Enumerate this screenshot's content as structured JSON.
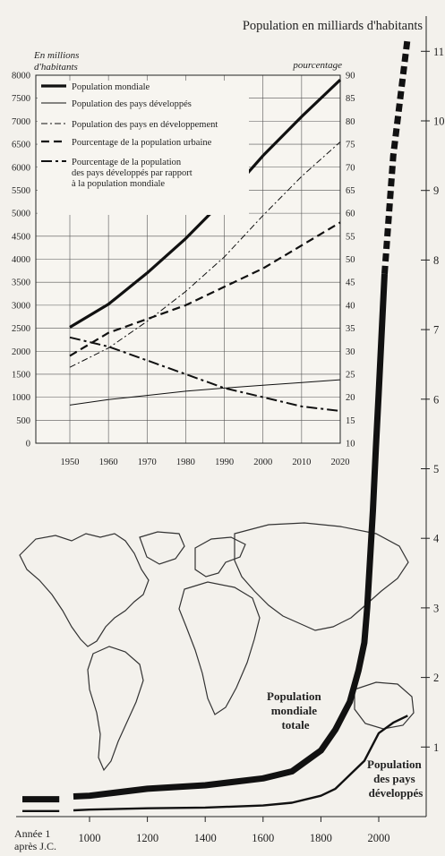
{
  "chart_data": [
    {
      "type": "line",
      "title": "Population en milliards d'habitants",
      "x": [
        1,
        1000,
        1200,
        1400,
        1600,
        1800,
        1900,
        1950,
        2000,
        2020,
        2100
      ],
      "xlim": [
        1,
        2100
      ],
      "xticks": [
        1000,
        1200,
        1400,
        1600,
        1800,
        2000
      ],
      "xtick_labels": [
        "1000",
        "1200",
        "1400",
        "1600",
        "1800",
        "2000"
      ],
      "x_start_label": [
        "Année 1",
        "après J.C."
      ],
      "ylim": [
        0,
        11.5
      ],
      "yticks": [
        1,
        2,
        3,
        4,
        5,
        6,
        7,
        8,
        9,
        10,
        11
      ],
      "yticks_side": "right",
      "series": [
        {
          "name": "Population mondiale totale",
          "label_lines": [
            "Population",
            "mondiale",
            "totale"
          ],
          "points": [
            [
              1,
              0.25
            ],
            [
              1000,
              0.3
            ],
            [
              1200,
              0.4
            ],
            [
              1400,
              0.45
            ],
            [
              1600,
              0.55
            ],
            [
              1700,
              0.65
            ],
            [
              1800,
              0.95
            ],
            [
              1850,
              1.25
            ],
            [
              1900,
              1.65
            ],
            [
              1930,
              2.1
            ],
            [
              1950,
              2.5
            ],
            [
              1960,
              3.0
            ],
            [
              1970,
              3.7
            ],
            [
              1980,
              4.4
            ],
            [
              1990,
              5.3
            ],
            [
              2000,
              6.1
            ],
            [
              2020,
              7.8
            ],
            [
              2050,
              9.5
            ],
            [
              2100,
              11.2
            ]
          ]
        },
        {
          "name": "Population des pays développés",
          "label_lines": [
            "Population",
            "des pays",
            "développés"
          ],
          "points": [
            [
              1,
              0.08
            ],
            [
              1000,
              0.1
            ],
            [
              1200,
              0.12
            ],
            [
              1400,
              0.13
            ],
            [
              1600,
              0.16
            ],
            [
              1700,
              0.2
            ],
            [
              1800,
              0.3
            ],
            [
              1850,
              0.4
            ],
            [
              1900,
              0.6
            ],
            [
              1950,
              0.8
            ],
            [
              2000,
              1.2
            ],
            [
              2050,
              1.35
            ],
            [
              2100,
              1.45
            ]
          ]
        }
      ]
    },
    {
      "type": "line",
      "x": [
        1950,
        1960,
        1970,
        1980,
        1990,
        2000,
        2010,
        2020
      ],
      "xticks": [
        1950,
        1960,
        1970,
        1980,
        1990,
        2000,
        2010,
        2020
      ],
      "xlim": [
        1945,
        2020
      ],
      "ylabel_left": [
        "En millions",
        "d'habitants"
      ],
      "ylim_left": [
        0,
        8000
      ],
      "yticks_left": [
        0,
        500,
        1000,
        1500,
        2000,
        2500,
        3000,
        3500,
        4000,
        4500,
        5000,
        5500,
        6000,
        6500,
        7000,
        7500,
        8000
      ],
      "ylabel_right": "pourcentage",
      "ylim_right": [
        10,
        90
      ],
      "yticks_right": [
        10,
        15,
        20,
        25,
        30,
        35,
        40,
        45,
        50,
        55,
        60,
        65,
        70,
        75,
        80,
        85,
        90
      ],
      "grid": true,
      "legend_position": "top-left",
      "series": [
        {
          "name": "Population mondiale",
          "axis": "left",
          "style": "thick",
          "values": [
            2520,
            3020,
            3700,
            4450,
            5300,
            6250,
            7100,
            7900
          ]
        },
        {
          "name": "Population des pays développés",
          "axis": "left",
          "style": "thin",
          "values": [
            830,
            950,
            1040,
            1130,
            1200,
            1260,
            1320,
            1380
          ]
        },
        {
          "name": "Population des pays en développement",
          "axis": "left",
          "style": "dash-dot-thin",
          "values": [
            1650,
            2070,
            2650,
            3300,
            4050,
            4950,
            5800,
            6550
          ]
        },
        {
          "name": "Pourcentage de la population urbaine",
          "axis": "right",
          "style": "dashed",
          "values": [
            29,
            34,
            37,
            40,
            44,
            48,
            53,
            58
          ]
        },
        {
          "name": "Pourcentage de la population des pays développés par rapport à la population mondiale",
          "legend_lines": [
            "Pourcentage de la population",
            "des pays développés par rapport",
            "à la population mondiale"
          ],
          "axis": "right",
          "style": "long-dash-dot",
          "values": [
            33,
            31,
            28,
            25,
            22,
            20,
            18,
            17
          ]
        }
      ]
    }
  ]
}
